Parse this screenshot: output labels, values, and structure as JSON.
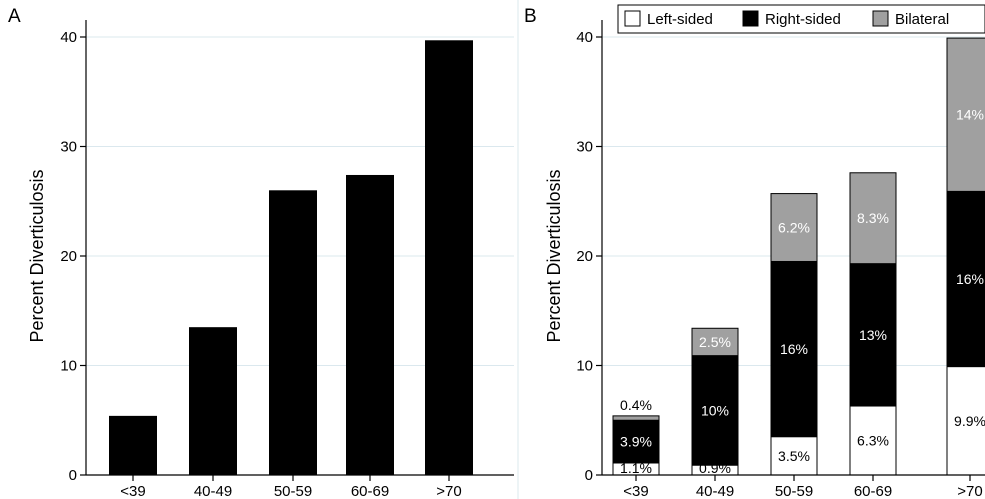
{
  "chart_data": [
    {
      "panel": "A",
      "type": "bar",
      "ylabel": "Percent Diverticulosis",
      "ylim": [
        0,
        40
      ],
      "yticks": [
        0,
        10,
        20,
        30,
        40
      ],
      "grid": true,
      "categories": [
        "<39",
        "40-49",
        "50-59",
        "60-69",
        ">70"
      ],
      "values": [
        5.4,
        13.5,
        26.0,
        27.4,
        39.7
      ],
      "colors": {
        "bar": "#000000"
      }
    },
    {
      "panel": "B",
      "type": "bar",
      "stacked": true,
      "ylabel": "Percent Diverticulosis",
      "ylim": [
        0,
        40
      ],
      "yticks": [
        0,
        10,
        20,
        30,
        40
      ],
      "grid": true,
      "legend_position": "top-right",
      "categories": [
        "<39",
        "40-49",
        "50-59",
        "60-69",
        ">70"
      ],
      "series": [
        {
          "name": "Left-sided",
          "color": "#ffffff",
          "label_color": "#000000",
          "values": [
            1.1,
            0.9,
            3.5,
            6.3,
            9.9
          ],
          "labels": [
            "1.1%",
            "0.9%",
            "3.5%",
            "6.3%",
            "9.9%"
          ]
        },
        {
          "name": "Right-sided",
          "color": "#000000",
          "label_color": "#ffffff",
          "values": [
            3.9,
            10,
            16,
            13,
            16
          ],
          "labels": [
            "3.9%",
            "10%",
            "16%",
            "13%",
            "16%"
          ]
        },
        {
          "name": "Bilateral",
          "color": "#a0a0a0",
          "label_color": "#ffffff",
          "values": [
            0.4,
            2.5,
            6.2,
            8.3,
            14
          ],
          "labels": [
            "0.4%",
            "2.5%",
            "6.2%",
            "8.3%",
            "14%"
          ]
        }
      ]
    }
  ]
}
